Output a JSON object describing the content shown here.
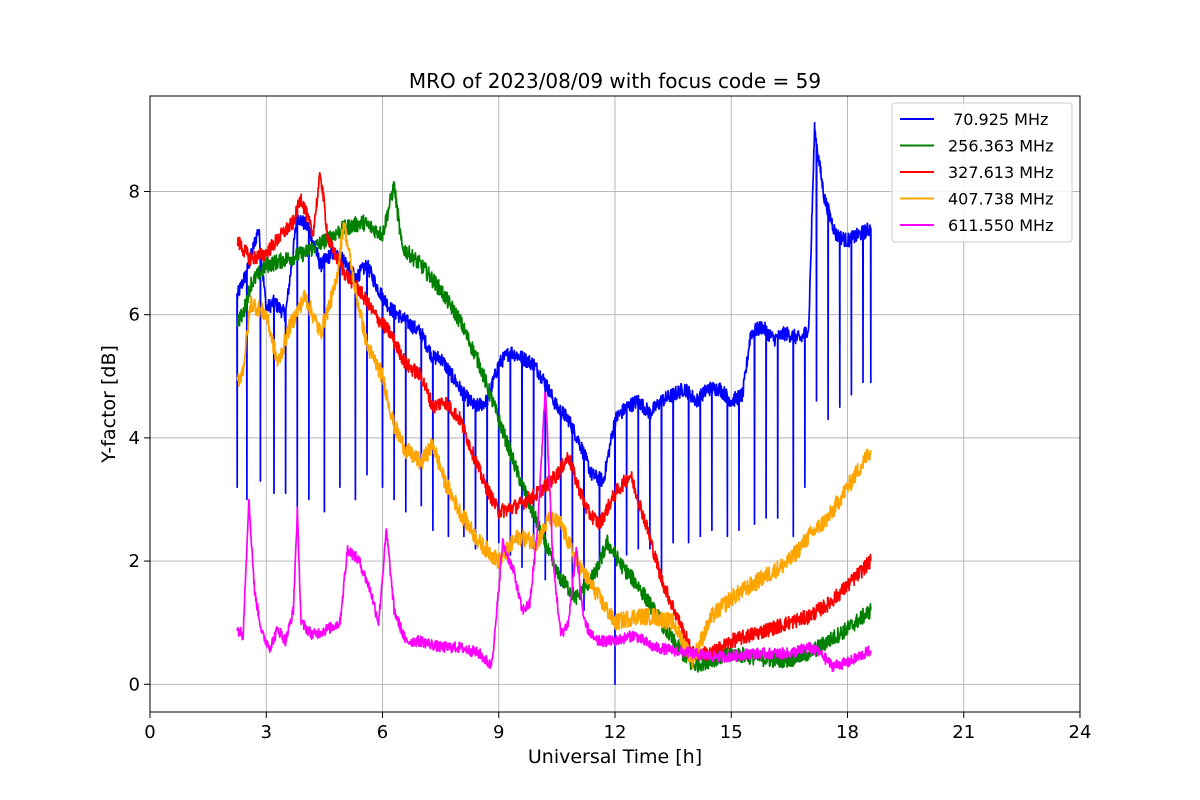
{
  "chart_data": {
    "type": "line",
    "title": "MRO of 2023/08/09 with focus code = 59",
    "xlabel": "Universal Time [h]",
    "ylabel": "Y-factor [dB]",
    "xlim": [
      0,
      24
    ],
    "ylim": [
      -0.45,
      9.55
    ],
    "xticks": [
      0,
      3,
      6,
      9,
      12,
      15,
      18,
      21,
      24
    ],
    "yticks": [
      0,
      2,
      4,
      6,
      8
    ],
    "grid": true,
    "legend_position": "top-right",
    "series": [
      {
        "name": " 70.925 MHz",
        "color": "#0000ff",
        "points": [
          [
            2.25,
            6.3
          ],
          [
            2.5,
            6.7
          ],
          [
            2.8,
            7.4
          ],
          [
            3.0,
            6.1
          ],
          [
            3.2,
            6.2
          ],
          [
            3.5,
            6.0
          ],
          [
            3.8,
            7.6
          ],
          [
            4.1,
            7.4
          ],
          [
            4.4,
            6.8
          ],
          [
            4.7,
            7.0
          ],
          [
            5.0,
            6.9
          ],
          [
            5.3,
            6.6
          ],
          [
            5.6,
            6.8
          ],
          [
            5.9,
            6.4
          ],
          [
            6.2,
            6.1
          ],
          [
            6.6,
            5.9
          ],
          [
            7.0,
            5.7
          ],
          [
            7.3,
            5.3
          ],
          [
            7.5,
            5.3
          ],
          [
            7.8,
            5.0
          ],
          [
            8.1,
            4.7
          ],
          [
            8.4,
            4.5
          ],
          [
            8.7,
            4.6
          ],
          [
            9.0,
            5.2
          ],
          [
            9.3,
            5.4
          ],
          [
            9.6,
            5.3
          ],
          [
            9.9,
            5.2
          ],
          [
            10.2,
            4.9
          ],
          [
            10.5,
            4.5
          ],
          [
            10.8,
            4.3
          ],
          [
            11.1,
            3.9
          ],
          [
            11.4,
            3.4
          ],
          [
            11.7,
            3.3
          ],
          [
            12.0,
            4.3
          ],
          [
            12.3,
            4.5
          ],
          [
            12.6,
            4.6
          ],
          [
            12.9,
            4.4
          ],
          [
            13.2,
            4.6
          ],
          [
            13.5,
            4.7
          ],
          [
            13.8,
            4.8
          ],
          [
            14.1,
            4.6
          ],
          [
            14.4,
            4.8
          ],
          [
            14.7,
            4.8
          ],
          [
            15.0,
            4.6
          ],
          [
            15.3,
            4.7
          ],
          [
            15.5,
            5.7
          ],
          [
            15.8,
            5.8
          ],
          [
            16.1,
            5.6
          ],
          [
            16.4,
            5.7
          ],
          [
            16.8,
            5.6
          ],
          [
            17.0,
            5.8
          ],
          [
            17.15,
            9.0
          ],
          [
            17.4,
            7.9
          ],
          [
            17.7,
            7.3
          ],
          [
            18.0,
            7.2
          ],
          [
            18.3,
            7.3
          ],
          [
            18.6,
            7.4
          ]
        ],
        "dips": [
          [
            2.25,
            3.2
          ],
          [
            2.5,
            3.0
          ],
          [
            2.85,
            3.3
          ],
          [
            3.2,
            3.1
          ],
          [
            3.5,
            3.1
          ],
          [
            3.8,
            2.8
          ],
          [
            4.1,
            3.0
          ],
          [
            4.5,
            2.8
          ],
          [
            4.9,
            3.2
          ],
          [
            5.3,
            3.0
          ],
          [
            5.6,
            3.4
          ],
          [
            6.0,
            3.2
          ],
          [
            6.3,
            3.0
          ],
          [
            6.6,
            2.8
          ],
          [
            7.0,
            2.9
          ],
          [
            7.3,
            2.5
          ],
          [
            7.7,
            2.4
          ],
          [
            8.1,
            2.4
          ],
          [
            8.4,
            2.2
          ],
          [
            8.7,
            2.1
          ],
          [
            9.0,
            2.3
          ],
          [
            9.3,
            2.1
          ],
          [
            9.6,
            1.9
          ],
          [
            9.9,
            2.2
          ],
          [
            10.2,
            1.7
          ],
          [
            10.6,
            1.6
          ],
          [
            10.9,
            1.5
          ],
          [
            11.2,
            1.2
          ],
          [
            11.6,
            1.9
          ],
          [
            12.0,
            0.0
          ],
          [
            12.3,
            2.1
          ],
          [
            12.6,
            2.2
          ],
          [
            12.9,
            2.2
          ],
          [
            13.2,
            1.8
          ],
          [
            13.5,
            2.3
          ],
          [
            13.9,
            2.3
          ],
          [
            14.2,
            2.4
          ],
          [
            14.5,
            2.5
          ],
          [
            14.9,
            2.4
          ],
          [
            15.2,
            2.5
          ],
          [
            15.6,
            2.6
          ],
          [
            15.9,
            2.7
          ],
          [
            16.2,
            2.7
          ],
          [
            16.6,
            2.4
          ],
          [
            16.9,
            3.2
          ],
          [
            17.2,
            4.6
          ],
          [
            17.5,
            4.3
          ],
          [
            17.8,
            4.5
          ],
          [
            18.1,
            4.7
          ],
          [
            18.4,
            4.9
          ],
          [
            18.6,
            4.9
          ]
        ]
      },
      {
        "name": "256.363 MHz",
        "color": "#008000",
        "points": [
          [
            2.25,
            5.9
          ],
          [
            2.4,
            6.0
          ],
          [
            2.6,
            6.5
          ],
          [
            3.0,
            6.8
          ],
          [
            3.5,
            6.9
          ],
          [
            4.0,
            7.0
          ],
          [
            4.5,
            7.2
          ],
          [
            5.0,
            7.4
          ],
          [
            5.5,
            7.5
          ],
          [
            6.0,
            7.3
          ],
          [
            6.3,
            8.1
          ],
          [
            6.5,
            7.1
          ],
          [
            7.0,
            6.8
          ],
          [
            7.5,
            6.4
          ],
          [
            8.0,
            5.9
          ],
          [
            8.5,
            5.2
          ],
          [
            9.0,
            4.3
          ],
          [
            9.5,
            3.4
          ],
          [
            10.0,
            2.6
          ],
          [
            10.5,
            1.8
          ],
          [
            11.0,
            1.4
          ],
          [
            11.5,
            1.8
          ],
          [
            11.8,
            2.3
          ],
          [
            12.2,
            1.9
          ],
          [
            12.6,
            1.6
          ],
          [
            13.0,
            1.2
          ],
          [
            13.5,
            0.7
          ],
          [
            14.0,
            0.3
          ],
          [
            14.5,
            0.4
          ],
          [
            15.0,
            0.5
          ],
          [
            15.5,
            0.45
          ],
          [
            16.0,
            0.4
          ],
          [
            16.5,
            0.4
          ],
          [
            17.0,
            0.5
          ],
          [
            17.5,
            0.7
          ],
          [
            18.0,
            0.9
          ],
          [
            18.6,
            1.2
          ]
        ]
      },
      {
        "name": "327.613 MHz",
        "color": "#ff0000",
        "points": [
          [
            2.25,
            7.2
          ],
          [
            2.6,
            6.9
          ],
          [
            3.0,
            7.0
          ],
          [
            3.4,
            7.3
          ],
          [
            3.7,
            7.5
          ],
          [
            3.9,
            7.9
          ],
          [
            4.2,
            7.3
          ],
          [
            4.4,
            8.3
          ],
          [
            4.6,
            7.2
          ],
          [
            5.0,
            6.7
          ],
          [
            5.4,
            6.4
          ],
          [
            5.8,
            6.0
          ],
          [
            6.2,
            5.7
          ],
          [
            6.6,
            5.2
          ],
          [
            7.0,
            5.0
          ],
          [
            7.3,
            4.5
          ],
          [
            7.6,
            4.6
          ],
          [
            8.0,
            4.3
          ],
          [
            8.3,
            3.8
          ],
          [
            8.6,
            3.3
          ],
          [
            9.0,
            2.8
          ],
          [
            9.5,
            2.9
          ],
          [
            10.0,
            3.1
          ],
          [
            10.5,
            3.4
          ],
          [
            10.8,
            3.7
          ],
          [
            11.0,
            3.3
          ],
          [
            11.3,
            2.8
          ],
          [
            11.6,
            2.6
          ],
          [
            12.0,
            3.1
          ],
          [
            12.4,
            3.4
          ],
          [
            12.8,
            2.6
          ],
          [
            13.2,
            1.7
          ],
          [
            13.6,
            1.1
          ],
          [
            14.0,
            0.5
          ],
          [
            14.5,
            0.5
          ],
          [
            15.0,
            0.7
          ],
          [
            15.5,
            0.8
          ],
          [
            16.0,
            0.9
          ],
          [
            16.5,
            1.0
          ],
          [
            17.0,
            1.1
          ],
          [
            17.5,
            1.3
          ],
          [
            18.0,
            1.6
          ],
          [
            18.6,
            2.0
          ]
        ]
      },
      {
        "name": "407.738 MHz",
        "color": "#ffa500",
        "points": [
          [
            2.25,
            4.9
          ],
          [
            2.4,
            5.1
          ],
          [
            2.6,
            6.2
          ],
          [
            3.0,
            6.0
          ],
          [
            3.3,
            5.2
          ],
          [
            3.6,
            5.8
          ],
          [
            4.0,
            6.3
          ],
          [
            4.4,
            5.7
          ],
          [
            4.8,
            6.5
          ],
          [
            5.0,
            7.5
          ],
          [
            5.3,
            6.4
          ],
          [
            5.6,
            5.5
          ],
          [
            6.0,
            5.0
          ],
          [
            6.3,
            4.2
          ],
          [
            6.6,
            3.8
          ],
          [
            7.0,
            3.6
          ],
          [
            7.3,
            3.9
          ],
          [
            7.6,
            3.3
          ],
          [
            8.0,
            2.8
          ],
          [
            8.5,
            2.3
          ],
          [
            9.0,
            2.0
          ],
          [
            9.5,
            2.4
          ],
          [
            10.0,
            2.3
          ],
          [
            10.3,
            2.7
          ],
          [
            10.6,
            2.6
          ],
          [
            11.0,
            2.0
          ],
          [
            11.5,
            1.5
          ],
          [
            12.0,
            1.0
          ],
          [
            12.5,
            1.1
          ],
          [
            13.0,
            1.1
          ],
          [
            13.5,
            1.0
          ],
          [
            14.0,
            0.4
          ],
          [
            14.5,
            1.1
          ],
          [
            15.0,
            1.4
          ],
          [
            15.5,
            1.6
          ],
          [
            16.0,
            1.8
          ],
          [
            16.5,
            2.0
          ],
          [
            17.0,
            2.4
          ],
          [
            17.5,
            2.7
          ],
          [
            18.0,
            3.2
          ],
          [
            18.3,
            3.5
          ],
          [
            18.6,
            3.8
          ]
        ]
      },
      {
        "name": "611.550 MHz",
        "color": "#ff00ff",
        "points": [
          [
            2.25,
            0.9
          ],
          [
            2.4,
            0.8
          ],
          [
            2.55,
            3.0
          ],
          [
            2.7,
            1.5
          ],
          [
            2.9,
            0.8
          ],
          [
            3.1,
            0.6
          ],
          [
            3.3,
            0.9
          ],
          [
            3.5,
            0.7
          ],
          [
            3.7,
            1.2
          ],
          [
            3.8,
            2.8
          ],
          [
            3.9,
            1.0
          ],
          [
            4.2,
            0.8
          ],
          [
            4.6,
            0.9
          ],
          [
            4.9,
            1.0
          ],
          [
            5.1,
            2.2
          ],
          [
            5.4,
            2.0
          ],
          [
            5.7,
            1.5
          ],
          [
            5.9,
            1.0
          ],
          [
            6.1,
            2.5
          ],
          [
            6.3,
            1.2
          ],
          [
            6.6,
            0.7
          ],
          [
            7.0,
            0.7
          ],
          [
            7.5,
            0.6
          ],
          [
            8.0,
            0.6
          ],
          [
            8.5,
            0.5
          ],
          [
            8.8,
            0.3
          ],
          [
            8.9,
            0.8
          ],
          [
            9.1,
            2.3
          ],
          [
            9.4,
            1.8
          ],
          [
            9.6,
            1.2
          ],
          [
            9.8,
            1.3
          ],
          [
            10.0,
            2.5
          ],
          [
            10.2,
            4.8
          ],
          [
            10.4,
            2.0
          ],
          [
            10.6,
            0.8
          ],
          [
            10.8,
            1.0
          ],
          [
            11.0,
            2.2
          ],
          [
            11.2,
            1.0
          ],
          [
            11.5,
            0.7
          ],
          [
            12.0,
            0.7
          ],
          [
            12.5,
            0.8
          ],
          [
            13.0,
            0.6
          ],
          [
            13.5,
            0.55
          ],
          [
            14.0,
            0.5
          ],
          [
            14.5,
            0.45
          ],
          [
            15.0,
            0.45
          ],
          [
            15.5,
            0.5
          ],
          [
            16.0,
            0.5
          ],
          [
            16.5,
            0.5
          ],
          [
            17.0,
            0.6
          ],
          [
            17.3,
            0.5
          ],
          [
            17.6,
            0.3
          ],
          [
            18.0,
            0.35
          ],
          [
            18.3,
            0.45
          ],
          [
            18.6,
            0.55
          ]
        ]
      }
    ]
  }
}
